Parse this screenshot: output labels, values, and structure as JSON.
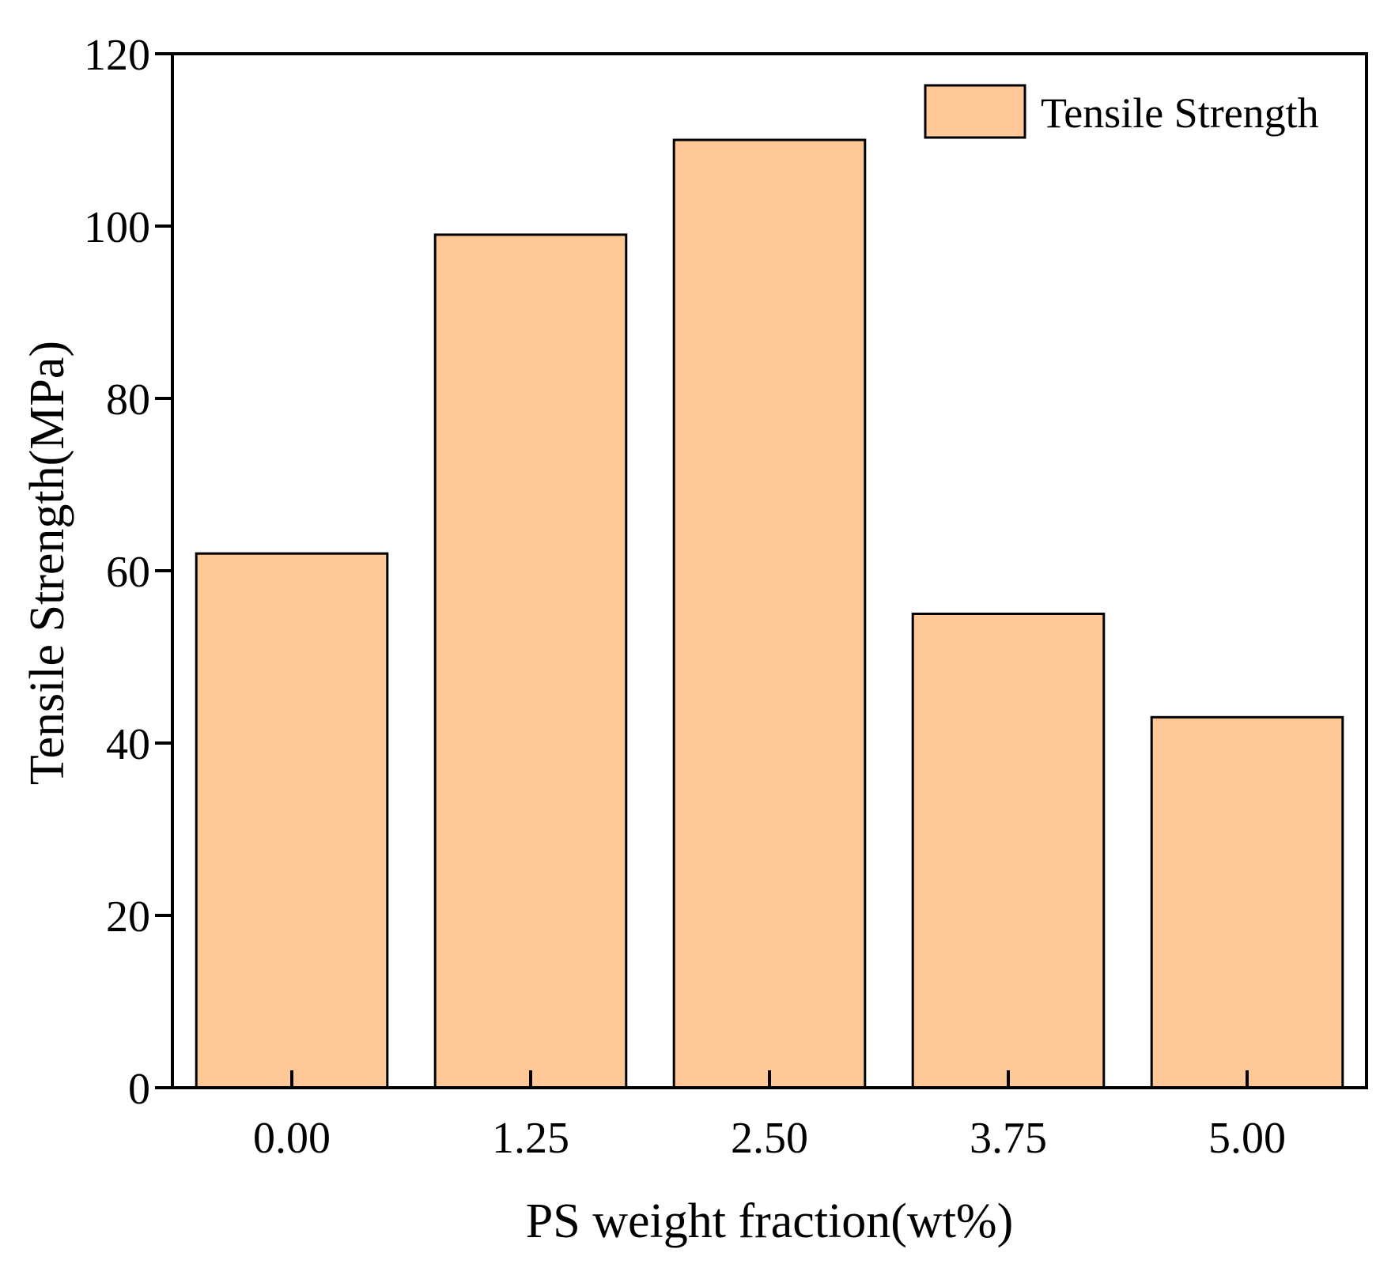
{
  "chart_data": {
    "type": "bar",
    "title": "",
    "xlabel": "PS weight fraction(wt%)",
    "ylabel": "Tensile Strength(MPa)",
    "categories": [
      "0.00",
      "1.25",
      "2.50",
      "3.75",
      "5.00"
    ],
    "series": [
      {
        "name": "Tensile Strength",
        "values": [
          62,
          99,
          110,
          55,
          43
        ]
      }
    ],
    "ylim": [
      0,
      120
    ],
    "yticks": [
      "0",
      "20",
      "40",
      "60",
      "80",
      "100",
      "120"
    ],
    "legend_position": "top-right",
    "grid": false
  },
  "colors": {
    "bar_fill": "#FFC896",
    "bar_stroke": "#000000",
    "axis": "#000000"
  }
}
